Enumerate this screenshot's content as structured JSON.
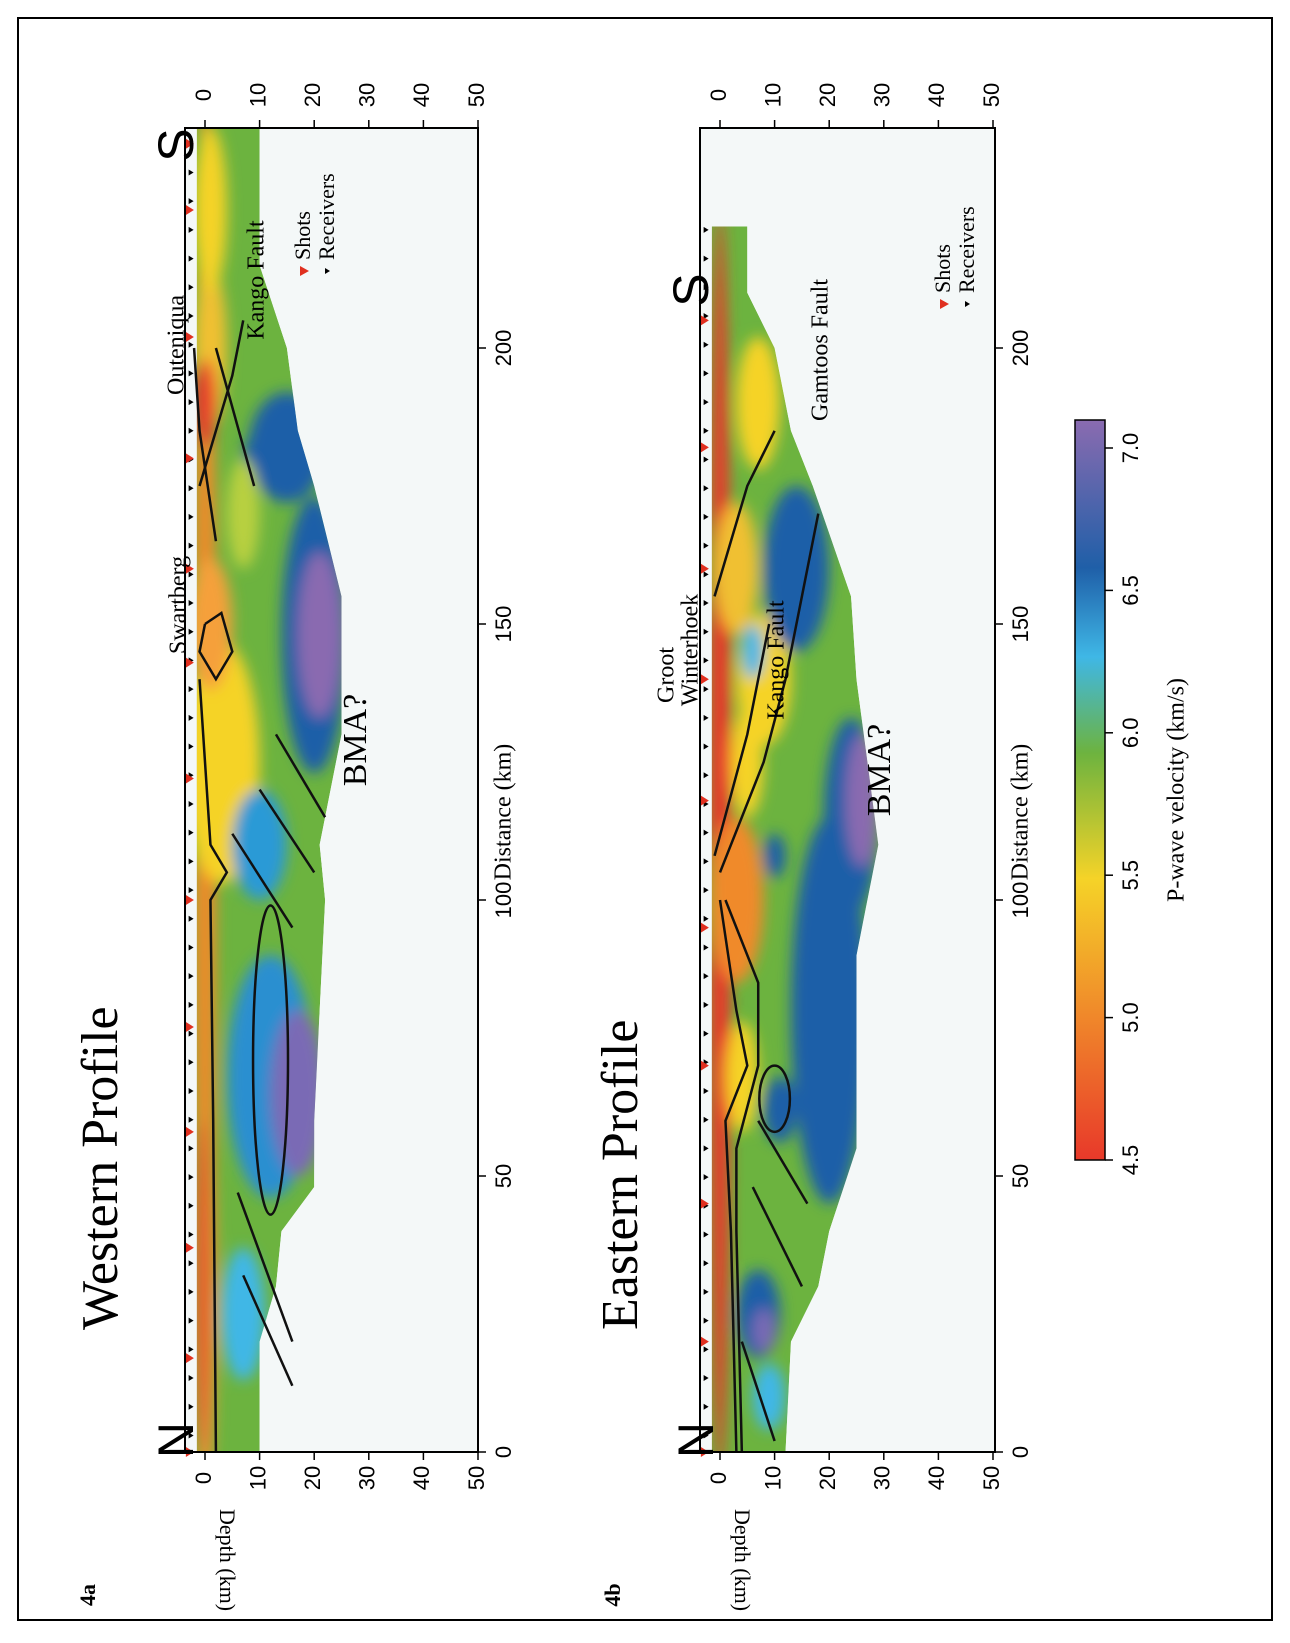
{
  "figure": {
    "panels": [
      {
        "label": "4a",
        "title": "Western Profile",
        "north": "N",
        "south": "S",
        "x_label": "Distance (km)",
        "y_label": "Depth (km)",
        "x_ticks": [
          0,
          50,
          100,
          150,
          200
        ],
        "depth_ticks": [
          0,
          10,
          20,
          30,
          40,
          50
        ],
        "annotations": [
          "Swartberg",
          "Outeniqua",
          "Kango Fault",
          "BMA?"
        ],
        "legend": [
          "Shots",
          "Receivers"
        ]
      },
      {
        "label": "4b",
        "title": "Eastern Profile",
        "north": "N",
        "south": "S",
        "x_label": "Distance (km)",
        "y_label": "Depth (km)",
        "x_ticks": [
          0,
          50,
          100,
          150,
          200
        ],
        "depth_ticks": [
          0,
          10,
          20,
          30,
          40,
          50
        ],
        "annotations": [
          "Groot",
          "Winterhoek",
          "Kango Fault",
          "Gamtoos Fault",
          "BMA?"
        ],
        "legend": [
          "Shots",
          "Receivers"
        ]
      }
    ],
    "colorbar": {
      "label": "P-wave velocity (km/s)",
      "ticks": [
        "4.5",
        "5.0",
        "5.5",
        "6.0",
        "6.5",
        "7.0"
      ]
    }
  }
}
